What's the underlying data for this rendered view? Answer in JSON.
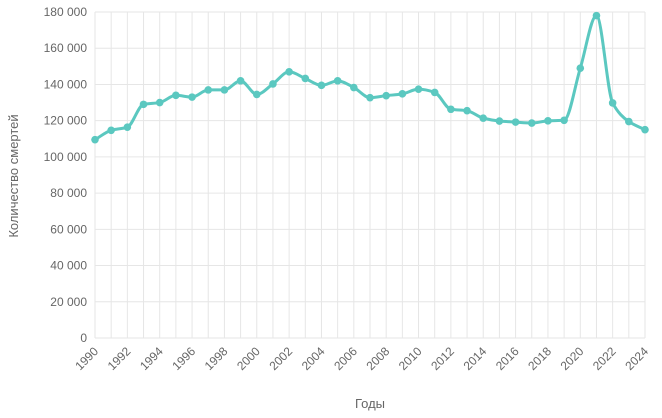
{
  "chart_data": {
    "type": "line",
    "title": "",
    "xlabel": "Годы",
    "ylabel": "Количество смертей",
    "ylim": [
      0,
      180000
    ],
    "yticks": [
      0,
      20000,
      40000,
      60000,
      80000,
      100000,
      120000,
      140000,
      160000,
      180000
    ],
    "ytick_labels": [
      "0",
      "20 000",
      "40 000",
      "60 000",
      "80 000",
      "100 000",
      "120 000",
      "140 000",
      "160 000",
      "180 000"
    ],
    "xlim": [
      1990,
      2024
    ],
    "xtick_labels": [
      "1990",
      "1992",
      "1994",
      "1996",
      "1998",
      "2000",
      "2002",
      "2004",
      "2006",
      "2008",
      "2010",
      "2012",
      "2014",
      "2016",
      "2018",
      "2020",
      "2022",
      "2024"
    ],
    "grid": true,
    "line_color": "#5bc8c0",
    "series": [
      {
        "x": [
          1990,
          1991,
          1992,
          1993,
          1994,
          1995,
          1996,
          1997,
          1998,
          1999,
          2000,
          2001,
          2002,
          2003,
          2004,
          2005,
          2006,
          2007,
          2008,
          2009,
          2010,
          2011,
          2012,
          2013,
          2014,
          2015,
          2016,
          2017,
          2018,
          2019,
          2020,
          2021,
          2022,
          2023,
          2024
        ],
        "values": [
          109500,
          114700,
          116400,
          129000,
          130000,
          134000,
          133000,
          137000,
          137000,
          142000,
          134500,
          140300,
          147000,
          143300,
          139500,
          142000,
          138300,
          132700,
          133800,
          134800,
          137400,
          135600,
          126300,
          125500,
          121400,
          119800,
          119200,
          118700,
          119900,
          120200,
          149000,
          178000,
          129800,
          119500,
          115000
        ]
      }
    ]
  }
}
